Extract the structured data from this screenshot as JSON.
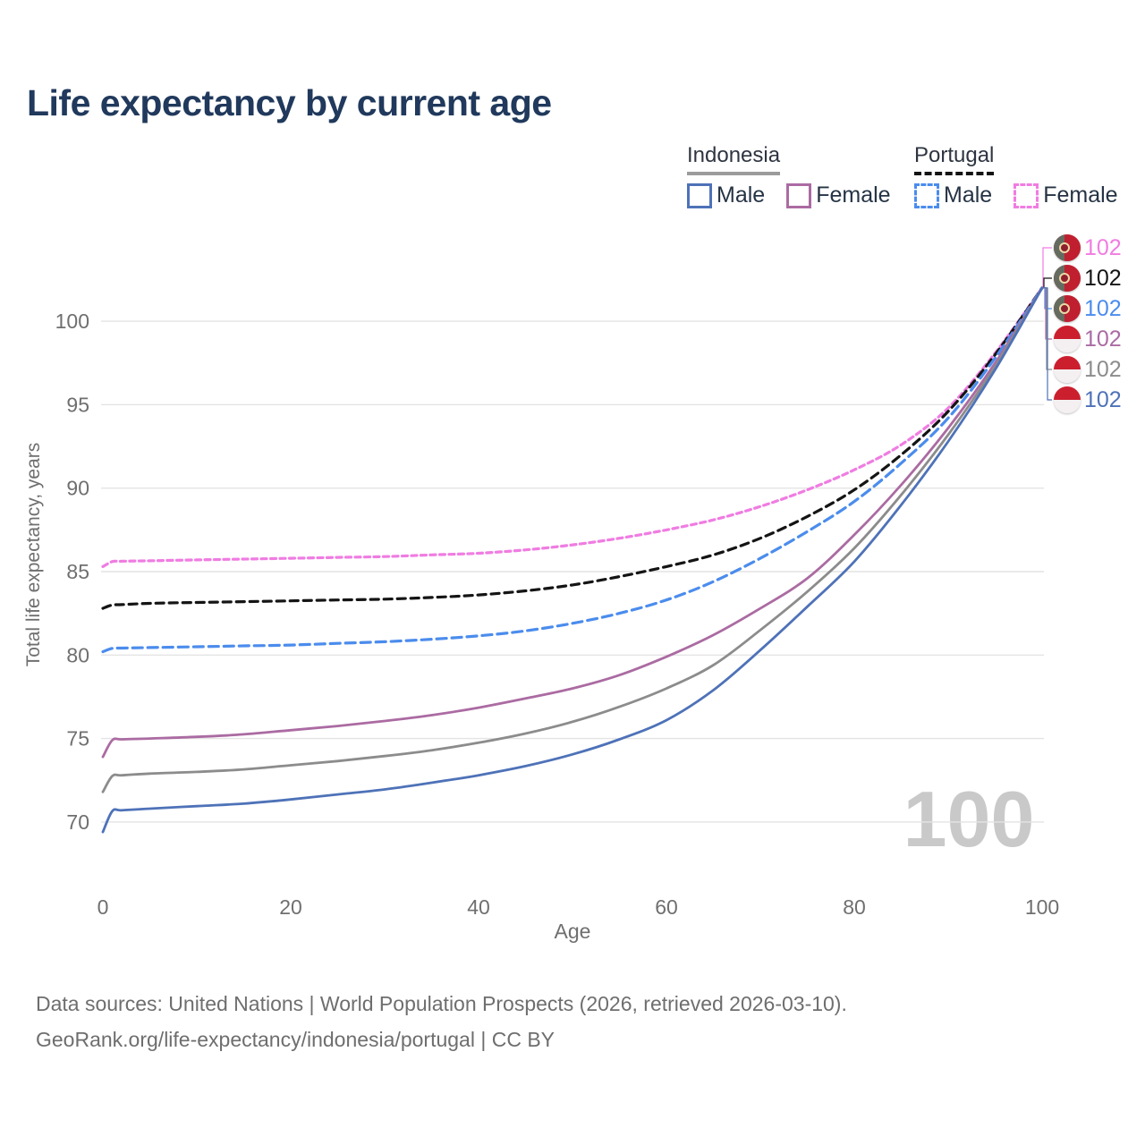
{
  "title": "Life expectancy by current age",
  "watermark": "100",
  "axes": {
    "y_title": "Total life expectancy, years",
    "x_title": "Age"
  },
  "legend": {
    "groups": [
      {
        "country": "Indonesia",
        "underline": {
          "style": "solid",
          "color": "#9b9b9b"
        },
        "items": [
          {
            "label": "Male",
            "color": "#4e72b8",
            "dashed": false
          },
          {
            "label": "Female",
            "color": "#ab6ba2",
            "dashed": false
          }
        ]
      },
      {
        "country": "Portugal",
        "underline": {
          "style": "dashed",
          "color": "#141414"
        },
        "items": [
          {
            "label": "Male",
            "color": "#4b8ced",
            "dashed": true
          },
          {
            "label": "Female",
            "color": "#f07ce2",
            "dashed": true
          }
        ]
      }
    ]
  },
  "colors": {
    "title_text": "#20395c",
    "axis_text": "#6f6f6f",
    "grid": "#e4e4e4",
    "watermark": "#c9c9c9",
    "footer_text": "#6e6e6e"
  },
  "chart_data": {
    "type": "line",
    "title": "Life expectancy by current age",
    "xlabel": "Age",
    "ylabel": "Total life expectancy, years",
    "xlim": [
      0,
      100
    ],
    "ylim": [
      69,
      103
    ],
    "x_ticks": [
      0,
      20,
      40,
      60,
      80,
      100
    ],
    "y_ticks": [
      70,
      75,
      80,
      85,
      90,
      95,
      100
    ],
    "grid": "horizontal",
    "legend_position": "top-right",
    "x": [
      0,
      1,
      2,
      5,
      10,
      15,
      20,
      25,
      30,
      35,
      40,
      45,
      50,
      55,
      60,
      65,
      70,
      75,
      80,
      85,
      90,
      95,
      100
    ],
    "series": [
      {
        "id": "portugal-female",
        "name": "Portugal Female",
        "color": "#f07ce2",
        "dash": "6 4.5",
        "width": 3.2,
        "values": [
          85.3,
          85.6,
          85.62,
          85.65,
          85.7,
          85.75,
          85.8,
          85.85,
          85.9,
          86.0,
          86.1,
          86.3,
          86.6,
          87.0,
          87.5,
          88.1,
          88.9,
          89.9,
          91.1,
          92.6,
          94.8,
          98.1,
          102
        ]
      },
      {
        "id": "portugal-total",
        "name": "Portugal Both sexes",
        "color": "#141414",
        "dash": "9 6",
        "width": 3.2,
        "values": [
          82.8,
          83.0,
          83.02,
          83.1,
          83.15,
          83.2,
          83.25,
          83.3,
          83.35,
          83.45,
          83.6,
          83.85,
          84.2,
          84.7,
          85.3,
          86.0,
          87.0,
          88.3,
          89.9,
          92.0,
          94.6,
          98.0,
          102
        ]
      },
      {
        "id": "portugal-male",
        "name": "Portugal Male",
        "color": "#4b8ced",
        "dash": "11 6",
        "width": 3.2,
        "values": [
          80.2,
          80.4,
          80.42,
          80.45,
          80.5,
          80.55,
          80.6,
          80.7,
          80.8,
          80.95,
          81.15,
          81.45,
          81.9,
          82.5,
          83.3,
          84.4,
          85.8,
          87.4,
          89.2,
          91.5,
          94.2,
          97.8,
          102
        ]
      },
      {
        "id": "indonesia-female",
        "name": "Indonesia Female",
        "color": "#ab6ba2",
        "dash": null,
        "width": 2.8,
        "values": [
          73.9,
          74.9,
          74.95,
          75.0,
          75.1,
          75.25,
          75.5,
          75.75,
          76.05,
          76.4,
          76.85,
          77.4,
          78.0,
          78.8,
          79.9,
          81.2,
          82.8,
          84.6,
          87.2,
          90.2,
          93.6,
          97.5,
          102
        ]
      },
      {
        "id": "indonesia-total",
        "name": "Indonesia Both sexes",
        "color": "#8c8c8c",
        "dash": null,
        "width": 2.8,
        "values": [
          71.8,
          72.75,
          72.8,
          72.9,
          73.0,
          73.15,
          73.4,
          73.65,
          73.95,
          74.3,
          74.75,
          75.3,
          76.0,
          76.9,
          78.0,
          79.4,
          81.5,
          83.8,
          86.4,
          89.6,
          93.2,
          97.3,
          102
        ]
      },
      {
        "id": "indonesia-male",
        "name": "Indonesia Male",
        "color": "#4e72b8",
        "dash": null,
        "width": 2.8,
        "values": [
          69.4,
          70.65,
          70.7,
          70.8,
          70.95,
          71.1,
          71.35,
          71.65,
          71.95,
          72.35,
          72.8,
          73.35,
          74.05,
          74.95,
          76.1,
          77.9,
          80.3,
          82.9,
          85.6,
          89.0,
          92.8,
          97.1,
          102
        ]
      }
    ],
    "end_labels": [
      {
        "id": "portugal-female",
        "text": "102",
        "color": "#f07ce2",
        "flag": "portugal"
      },
      {
        "id": "portugal-total",
        "text": "102",
        "color": "#141414",
        "flag": "portugal"
      },
      {
        "id": "portugal-male",
        "text": "102",
        "color": "#4b8ced",
        "flag": "portugal"
      },
      {
        "id": "indonesia-female",
        "text": "102",
        "color": "#ab6ba2",
        "flag": "indonesia"
      },
      {
        "id": "indonesia-total",
        "text": "102",
        "color": "#8c8c8c",
        "flag": "indonesia"
      },
      {
        "id": "indonesia-male",
        "text": "102",
        "color": "#4e72b8",
        "flag": "indonesia"
      }
    ]
  },
  "footer": {
    "line1": "Data sources: United Nations | World Population Prospects (2026, retrieved 2026-03-10).",
    "line2": "GeoRank.org/life-expectancy/indonesia/portugal | CC BY"
  }
}
